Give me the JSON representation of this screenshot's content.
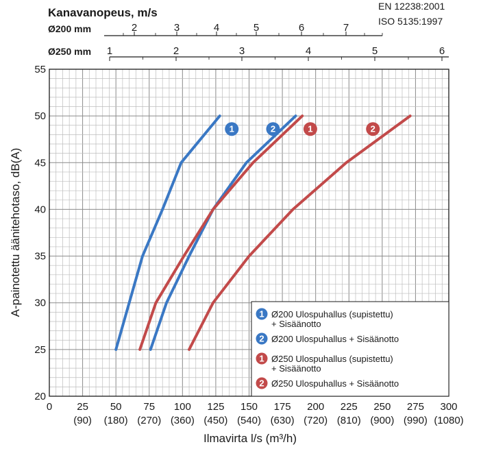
{
  "standards": [
    "EN 12238:2001",
    "ISO 5135:1997"
  ],
  "top_axes": {
    "title": "Kanavanopeus, m/s",
    "d200": {
      "label": "Ø200 mm",
      "ticks": [
        2,
        3,
        4,
        5,
        6,
        7
      ],
      "ticks_text": [
        "2",
        "3",
        "4",
        "5",
        "6",
        "7"
      ]
    },
    "d250": {
      "label": "Ø250 mm",
      "ticks": [
        1,
        2,
        3,
        4,
        5,
        6
      ],
      "ticks_text": [
        "1",
        "2",
        "3",
        "4",
        "5",
        "6"
      ]
    }
  },
  "chart_data": {
    "type": "line",
    "xlabel": "Ilmavirta l/s (m³/h)",
    "ylabel": "A-painotettu äänitehotaso, dB(A)",
    "xlim": [
      0,
      300
    ],
    "ylim": [
      20,
      55
    ],
    "x_ticks": [
      0,
      25,
      50,
      75,
      100,
      125,
      150,
      175,
      200,
      225,
      250,
      275,
      300
    ],
    "x_tick_labels": [
      "0",
      "25",
      "50",
      "75",
      "100",
      "125",
      "150",
      "175",
      "200",
      "225",
      "250",
      "275",
      "300"
    ],
    "x_sub_labels": [
      "(90)",
      "(180)",
      "(270)",
      "(360)",
      "(450)",
      "(540)",
      "(630)",
      "(720)",
      "(810)",
      "(900)",
      "(990)",
      "(1080)"
    ],
    "y_ticks": [
      20,
      25,
      30,
      35,
      40,
      45,
      50,
      55
    ],
    "y_tick_labels": [
      "20",
      "25",
      "30",
      "35",
      "40",
      "45",
      "50",
      "55"
    ],
    "grid": true,
    "legend_position": "bottom-right",
    "series": [
      {
        "name": "Ø200 Ulospuhallus (supistettu) + Sisäänotto",
        "badge": "1",
        "color": "#3a78c4",
        "points": [
          [
            50,
            25
          ],
          [
            60,
            30
          ],
          [
            70,
            35
          ],
          [
            85,
            40
          ],
          [
            99,
            45
          ],
          [
            128,
            50
          ]
        ]
      },
      {
        "name": "Ø200 Ulospuhallus + Sisäänotto",
        "badge": "2",
        "color": "#3a78c4",
        "points": [
          [
            76,
            25
          ],
          [
            88,
            30
          ],
          [
            105,
            35
          ],
          [
            123,
            40
          ],
          [
            148,
            45
          ],
          [
            185,
            50
          ]
        ]
      },
      {
        "name": "Ø250 Ulospuhallus (supistettu) + Sisäänotto",
        "badge": "1",
        "color": "#c24a4a",
        "points": [
          [
            68,
            25
          ],
          [
            80,
            30
          ],
          [
            101,
            35
          ],
          [
            123,
            40
          ],
          [
            153,
            45
          ],
          [
            190,
            50
          ]
        ]
      },
      {
        "name": "Ø250 Ulospuhallus + Sisäänotto",
        "badge": "2",
        "color": "#c24a4a",
        "points": [
          [
            105,
            25
          ],
          [
            123,
            30
          ],
          [
            150,
            35
          ],
          [
            183,
            40
          ],
          [
            223,
            45
          ],
          [
            271,
            50
          ]
        ]
      }
    ],
    "annotations": [
      {
        "badge": "1",
        "color": "#3a78c4",
        "x": 137,
        "y": 48.6
      },
      {
        "badge": "2",
        "color": "#3a78c4",
        "x": 168,
        "y": 48.6
      },
      {
        "badge": "1",
        "color": "#c24a4a",
        "x": 196,
        "y": 48.6
      },
      {
        "badge": "2",
        "color": "#c24a4a",
        "x": 243,
        "y": 48.6
      }
    ]
  }
}
